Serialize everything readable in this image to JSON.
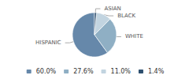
{
  "chart_data": {
    "type": "pie",
    "categories": [
      "HISPANIC",
      "WHITE",
      "BLACK",
      "ASIAN"
    ],
    "values": [
      60.0,
      27.6,
      11.0,
      1.4
    ],
    "value_labels": [
      "60.0%",
      "27.6%",
      "11.0%",
      "1.4%"
    ],
    "colors": [
      "#6688aa",
      "#8fafc4",
      "#c2d4e0",
      "#2e4f6e"
    ],
    "legend": "bottom"
  }
}
